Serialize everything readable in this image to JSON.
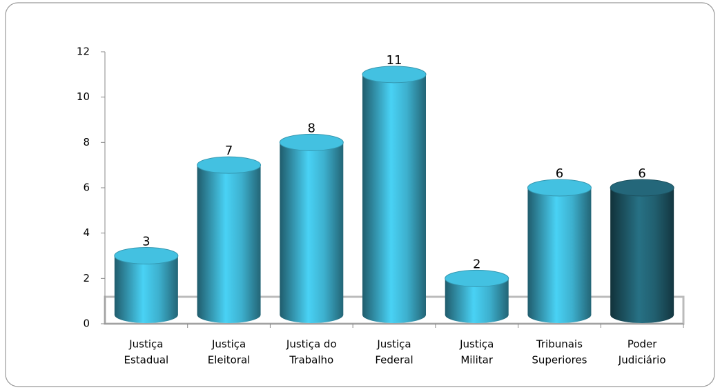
{
  "chart_data": {
    "type": "bar",
    "categories": [
      [
        "Justiça",
        "Estadual"
      ],
      [
        "Justiça",
        "Eleitoral"
      ],
      [
        "Justiça do",
        "Trabalho"
      ],
      [
        "Justiça",
        "Federal"
      ],
      [
        "Justiça",
        "Militar"
      ],
      [
        "Tribunais",
        "Superiores"
      ],
      [
        "Poder",
        "Judiciário"
      ]
    ],
    "values": [
      3,
      7,
      8,
      11,
      2,
      6,
      6
    ],
    "colors": [
      "#3aa8c4",
      "#3aa8c4",
      "#3aa8c4",
      "#3aa8c4",
      "#3aa8c4",
      "#3aa8c4",
      "#1f5a6a"
    ],
    "ylim": [
      0,
      12
    ],
    "yticks": [
      0,
      2,
      4,
      6,
      8,
      10,
      12
    ]
  }
}
